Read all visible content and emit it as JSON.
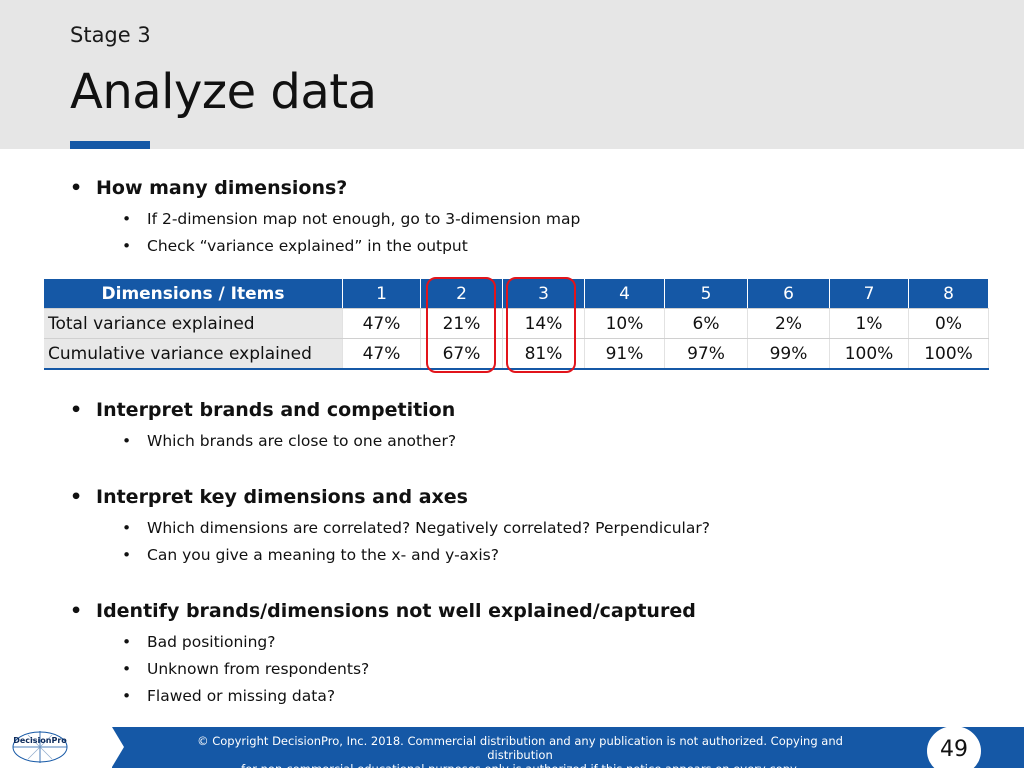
{
  "header": {
    "stage": "Stage 3",
    "title": "Analyze data"
  },
  "section1": {
    "heading": "How many dimensions?",
    "items": [
      "If 2-dimension map not enough, go to 3-dimension map",
      "Check “variance explained” in the output"
    ]
  },
  "table": {
    "header": [
      "Dimensions / Items",
      "1",
      "2",
      "3",
      "4",
      "5",
      "6",
      "7",
      "8"
    ],
    "rows": [
      {
        "label": "Total variance explained",
        "values": [
          "47%",
          "21%",
          "14%",
          "10%",
          "6%",
          "2%",
          "1%",
          "0%"
        ]
      },
      {
        "label": "Cumulative variance explained",
        "values": [
          "47%",
          "67%",
          "81%",
          "91%",
          "97%",
          "99%",
          "100%",
          "100%"
        ]
      }
    ]
  },
  "section2": {
    "heading": "Interpret brands and competition",
    "items": [
      "Which brands are close to one another?"
    ]
  },
  "section3": {
    "heading": "Interpret key dimensions and axes",
    "items": [
      "Which dimensions are correlated? Negatively correlated? Perpendicular?",
      "Can you give a meaning to the x- and y-axis?"
    ]
  },
  "section4": {
    "heading": "Identify brands/dimensions not well explained/captured",
    "items": [
      "Bad positioning?",
      "Unknown from respondents?",
      "Flawed or missing data?"
    ]
  },
  "footer": {
    "logo": "DecisionPro",
    "copyright_line1": "© Copyright DecisionPro, Inc.  2018. Commercial distribution and any publication is not authorized. Copying and distribution",
    "copyright_line2": "for non-commercial educational purposes only is authorized if this notice appears on every copy.",
    "page_number": "49"
  },
  "colors": {
    "accent": "#1558a6",
    "highlight": "#e2141b",
    "header_bg": "#e6e6e6"
  }
}
